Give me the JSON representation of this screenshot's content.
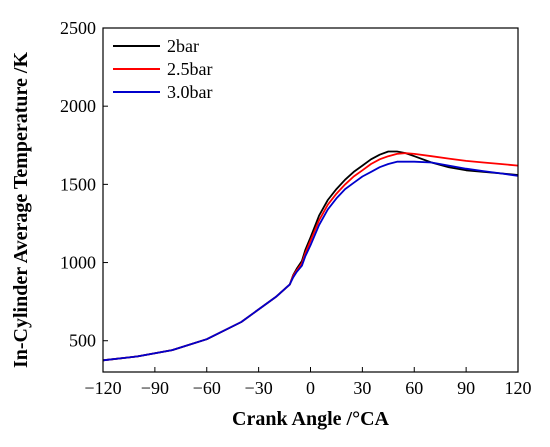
{
  "chart_data": {
    "type": "line",
    "title": "",
    "xlabel": "Crank Angle /°CA",
    "ylabel": "In-Cylinder Average Temperature /K",
    "xlim": [
      -120,
      120
    ],
    "ylim": [
      300,
      2500
    ],
    "xticks": [
      -120,
      -90,
      -60,
      -30,
      0,
      30,
      60,
      90,
      120
    ],
    "yticks": [
      500,
      1000,
      1500,
      2000,
      2500
    ],
    "grid": false,
    "legend_position": "top-left",
    "series": [
      {
        "name": "2bar",
        "color": "#000000",
        "x": [
          -120,
          -100,
          -80,
          -60,
          -40,
          -20,
          -12,
          -10,
          -8,
          -5,
          -3,
          0,
          5,
          10,
          15,
          20,
          25,
          30,
          35,
          40,
          45,
          50,
          55,
          60,
          70,
          80,
          90,
          100,
          110,
          120
        ],
        "y": [
          375,
          400,
          440,
          510,
          620,
          780,
          860,
          920,
          960,
          1010,
          1080,
          1160,
          1300,
          1400,
          1470,
          1530,
          1580,
          1620,
          1660,
          1690,
          1710,
          1710,
          1700,
          1680,
          1640,
          1610,
          1590,
          1580,
          1570,
          1560
        ]
      },
      {
        "name": "2.5bar",
        "color": "#ff0000",
        "x": [
          -120,
          -100,
          -80,
          -60,
          -40,
          -20,
          -12,
          -10,
          -8,
          -5,
          -3,
          0,
          5,
          10,
          15,
          20,
          25,
          30,
          35,
          40,
          45,
          50,
          55,
          60,
          70,
          80,
          90,
          100,
          110,
          120
        ],
        "y": [
          375,
          400,
          440,
          510,
          620,
          780,
          860,
          915,
          950,
          995,
          1060,
          1140,
          1270,
          1370,
          1440,
          1500,
          1550,
          1590,
          1630,
          1660,
          1680,
          1695,
          1700,
          1695,
          1680,
          1665,
          1650,
          1640,
          1630,
          1620
        ]
      },
      {
        "name": "3.0bar",
        "color": "#0000cc",
        "x": [
          -120,
          -100,
          -80,
          -60,
          -40,
          -20,
          -12,
          -10,
          -8,
          -5,
          -3,
          0,
          5,
          10,
          15,
          20,
          25,
          30,
          35,
          40,
          45,
          50,
          55,
          60,
          70,
          80,
          90,
          100,
          110,
          120
        ],
        "y": [
          375,
          400,
          440,
          510,
          620,
          780,
          860,
          905,
          940,
          980,
          1040,
          1110,
          1240,
          1340,
          1410,
          1470,
          1510,
          1550,
          1580,
          1610,
          1630,
          1645,
          1645,
          1645,
          1640,
          1620,
          1600,
          1585,
          1570,
          1555
        ]
      }
    ]
  }
}
